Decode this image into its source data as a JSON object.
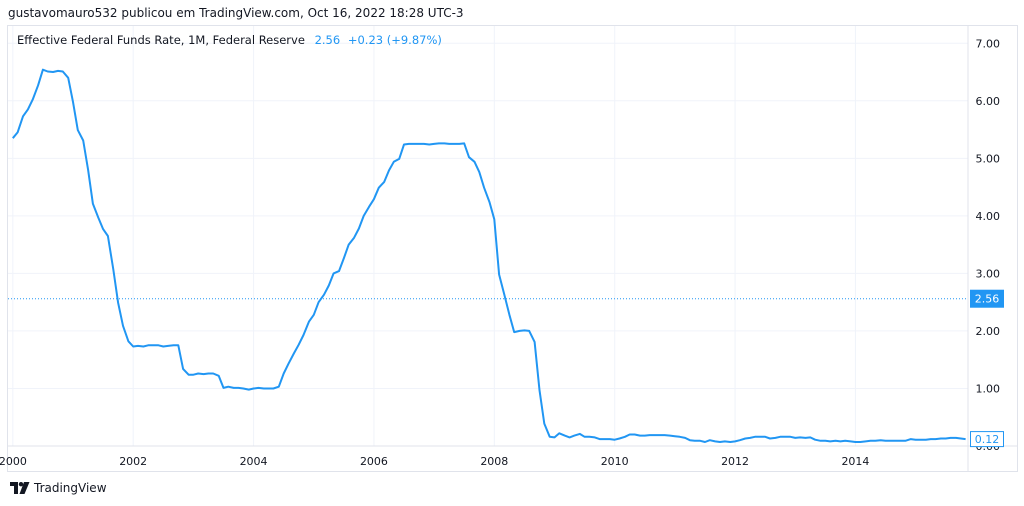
{
  "attribution": "gustavomauro532 publicou em TradingView.com, Oct 16, 2022 18:28 UTC-3",
  "legend": {
    "symbol": "Effective Federal Funds Rate, 1M, Federal Reserve",
    "value": "2.56",
    "change": "+0.23 (+9.87%)"
  },
  "brand": {
    "name": "TradingView",
    "logo_icon": "tradingview-logo-icon"
  },
  "colors": {
    "line": "#2196f3",
    "grid": "#f0f3fa",
    "axis_text": "#131722",
    "badge_fill": "#2196f3"
  },
  "chart_data": {
    "type": "line",
    "title": "",
    "xlabel": "",
    "ylabel": "",
    "xlim": [
      1999.92,
      2015.87
    ],
    "ylim": [
      0.0,
      7.3
    ],
    "grid": true,
    "x_ticks": [
      {
        "x": 2000,
        "label": "2000"
      },
      {
        "x": 2002,
        "label": "2002"
      },
      {
        "x": 2004,
        "label": "2004"
      },
      {
        "x": 2006,
        "label": "2006"
      },
      {
        "x": 2008,
        "label": "2008"
      },
      {
        "x": 2010,
        "label": "2010"
      },
      {
        "x": 2012,
        "label": "2012"
      },
      {
        "x": 2014,
        "label": "2014"
      }
    ],
    "y_ticks": [
      {
        "y": 7.0,
        "label": "7.00"
      },
      {
        "y": 6.0,
        "label": "6.00"
      },
      {
        "y": 5.0,
        "label": "5.00"
      },
      {
        "y": 4.0,
        "label": "4.00"
      },
      {
        "y": 3.0,
        "label": "3.00"
      },
      {
        "y": 2.0,
        "label": "2.00"
      },
      {
        "y": 1.0,
        "label": "1.00"
      },
      {
        "y": 0.0,
        "label": "0.00"
      }
    ],
    "price_line": {
      "y": 2.56,
      "label": "2.56"
    },
    "last_value": {
      "y": 0.12,
      "label": "0.12"
    },
    "series": [
      {
        "name": "Effective Federal Funds Rate",
        "points": [
          [
            2000.0,
            5.35
          ],
          [
            2000.08,
            5.45
          ],
          [
            2000.17,
            5.73
          ],
          [
            2000.25,
            5.85
          ],
          [
            2000.33,
            6.02
          ],
          [
            2000.42,
            6.27
          ],
          [
            2000.5,
            6.54
          ],
          [
            2000.58,
            6.51
          ],
          [
            2000.67,
            6.5
          ],
          [
            2000.75,
            6.52
          ],
          [
            2000.83,
            6.51
          ],
          [
            2000.92,
            6.4
          ],
          [
            2001.0,
            5.98
          ],
          [
            2001.08,
            5.49
          ],
          [
            2001.17,
            5.31
          ],
          [
            2001.25,
            4.8
          ],
          [
            2001.33,
            4.21
          ],
          [
            2001.42,
            3.97
          ],
          [
            2001.5,
            3.77
          ],
          [
            2001.58,
            3.65
          ],
          [
            2001.67,
            3.07
          ],
          [
            2001.75,
            2.49
          ],
          [
            2001.83,
            2.09
          ],
          [
            2001.92,
            1.82
          ],
          [
            2002.0,
            1.73
          ],
          [
            2002.08,
            1.74
          ],
          [
            2002.17,
            1.73
          ],
          [
            2002.25,
            1.75
          ],
          [
            2002.33,
            1.75
          ],
          [
            2002.42,
            1.75
          ],
          [
            2002.5,
            1.73
          ],
          [
            2002.58,
            1.74
          ],
          [
            2002.67,
            1.75
          ],
          [
            2002.75,
            1.75
          ],
          [
            2002.83,
            1.34
          ],
          [
            2002.92,
            1.24
          ],
          [
            2003.0,
            1.24
          ],
          [
            2003.08,
            1.26
          ],
          [
            2003.17,
            1.25
          ],
          [
            2003.25,
            1.26
          ],
          [
            2003.33,
            1.26
          ],
          [
            2003.42,
            1.22
          ],
          [
            2003.5,
            1.01
          ],
          [
            2003.58,
            1.03
          ],
          [
            2003.67,
            1.01
          ],
          [
            2003.75,
            1.01
          ],
          [
            2003.83,
            1.0
          ],
          [
            2003.92,
            0.98
          ],
          [
            2004.0,
            1.0
          ],
          [
            2004.08,
            1.01
          ],
          [
            2004.17,
            1.0
          ],
          [
            2004.25,
            1.0
          ],
          [
            2004.33,
            1.0
          ],
          [
            2004.42,
            1.03
          ],
          [
            2004.5,
            1.26
          ],
          [
            2004.58,
            1.43
          ],
          [
            2004.67,
            1.61
          ],
          [
            2004.75,
            1.76
          ],
          [
            2004.83,
            1.93
          ],
          [
            2004.92,
            2.16
          ],
          [
            2005.0,
            2.28
          ],
          [
            2005.08,
            2.5
          ],
          [
            2005.17,
            2.63
          ],
          [
            2005.25,
            2.79
          ],
          [
            2005.33,
            3.0
          ],
          [
            2005.42,
            3.04
          ],
          [
            2005.5,
            3.26
          ],
          [
            2005.58,
            3.5
          ],
          [
            2005.67,
            3.62
          ],
          [
            2005.75,
            3.78
          ],
          [
            2005.83,
            4.0
          ],
          [
            2005.92,
            4.16
          ],
          [
            2006.0,
            4.29
          ],
          [
            2006.08,
            4.49
          ],
          [
            2006.17,
            4.59
          ],
          [
            2006.25,
            4.79
          ],
          [
            2006.33,
            4.94
          ],
          [
            2006.42,
            4.99
          ],
          [
            2006.5,
            5.24
          ],
          [
            2006.58,
            5.25
          ],
          [
            2006.67,
            5.25
          ],
          [
            2006.75,
            5.25
          ],
          [
            2006.83,
            5.25
          ],
          [
            2006.92,
            5.24
          ],
          [
            2007.0,
            5.25
          ],
          [
            2007.08,
            5.26
          ],
          [
            2007.17,
            5.26
          ],
          [
            2007.25,
            5.25
          ],
          [
            2007.33,
            5.25
          ],
          [
            2007.42,
            5.25
          ],
          [
            2007.5,
            5.26
          ],
          [
            2007.58,
            5.02
          ],
          [
            2007.67,
            4.94
          ],
          [
            2007.75,
            4.76
          ],
          [
            2007.83,
            4.49
          ],
          [
            2007.92,
            4.24
          ],
          [
            2008.0,
            3.94
          ],
          [
            2008.08,
            2.98
          ],
          [
            2008.17,
            2.61
          ],
          [
            2008.25,
            2.28
          ],
          [
            2008.33,
            1.98
          ],
          [
            2008.42,
            2.0
          ],
          [
            2008.5,
            2.01
          ],
          [
            2008.58,
            2.0
          ],
          [
            2008.67,
            1.81
          ],
          [
            2008.75,
            0.97
          ],
          [
            2008.83,
            0.39
          ],
          [
            2008.92,
            0.16
          ],
          [
            2009.0,
            0.15
          ],
          [
            2009.08,
            0.22
          ],
          [
            2009.17,
            0.18
          ],
          [
            2009.25,
            0.15
          ],
          [
            2009.33,
            0.18
          ],
          [
            2009.42,
            0.21
          ],
          [
            2009.5,
            0.16
          ],
          [
            2009.58,
            0.16
          ],
          [
            2009.67,
            0.15
          ],
          [
            2009.75,
            0.12
          ],
          [
            2009.83,
            0.12
          ],
          [
            2009.92,
            0.12
          ],
          [
            2010.0,
            0.11
          ],
          [
            2010.08,
            0.13
          ],
          [
            2010.17,
            0.16
          ],
          [
            2010.25,
            0.2
          ],
          [
            2010.33,
            0.2
          ],
          [
            2010.42,
            0.18
          ],
          [
            2010.5,
            0.18
          ],
          [
            2010.58,
            0.19
          ],
          [
            2010.67,
            0.19
          ],
          [
            2010.75,
            0.19
          ],
          [
            2010.83,
            0.19
          ],
          [
            2010.92,
            0.18
          ],
          [
            2011.0,
            0.17
          ],
          [
            2011.08,
            0.16
          ],
          [
            2011.17,
            0.14
          ],
          [
            2011.25,
            0.1
          ],
          [
            2011.33,
            0.09
          ],
          [
            2011.42,
            0.09
          ],
          [
            2011.5,
            0.07
          ],
          [
            2011.58,
            0.1
          ],
          [
            2011.67,
            0.08
          ],
          [
            2011.75,
            0.07
          ],
          [
            2011.83,
            0.08
          ],
          [
            2011.92,
            0.07
          ],
          [
            2012.0,
            0.08
          ],
          [
            2012.08,
            0.1
          ],
          [
            2012.17,
            0.13
          ],
          [
            2012.25,
            0.14
          ],
          [
            2012.33,
            0.16
          ],
          [
            2012.42,
            0.16
          ],
          [
            2012.5,
            0.16
          ],
          [
            2012.58,
            0.13
          ],
          [
            2012.67,
            0.14
          ],
          [
            2012.75,
            0.16
          ],
          [
            2012.83,
            0.16
          ],
          [
            2012.92,
            0.16
          ],
          [
            2013.0,
            0.14
          ],
          [
            2013.08,
            0.15
          ],
          [
            2013.17,
            0.14
          ],
          [
            2013.25,
            0.15
          ],
          [
            2013.33,
            0.11
          ],
          [
            2013.42,
            0.09
          ],
          [
            2013.5,
            0.09
          ],
          [
            2013.58,
            0.08
          ],
          [
            2013.67,
            0.09
          ],
          [
            2013.75,
            0.08
          ],
          [
            2013.83,
            0.09
          ],
          [
            2013.92,
            0.08
          ],
          [
            2014.0,
            0.07
          ],
          [
            2014.08,
            0.07
          ],
          [
            2014.17,
            0.08
          ],
          [
            2014.25,
            0.09
          ],
          [
            2014.33,
            0.09
          ],
          [
            2014.42,
            0.1
          ],
          [
            2014.5,
            0.09
          ],
          [
            2014.58,
            0.09
          ],
          [
            2014.67,
            0.09
          ],
          [
            2014.75,
            0.09
          ],
          [
            2014.83,
            0.09
          ],
          [
            2014.92,
            0.12
          ],
          [
            2015.0,
            0.11
          ],
          [
            2015.08,
            0.11
          ],
          [
            2015.17,
            0.11
          ],
          [
            2015.25,
            0.12
          ],
          [
            2015.33,
            0.12
          ],
          [
            2015.42,
            0.13
          ],
          [
            2015.5,
            0.13
          ],
          [
            2015.58,
            0.14
          ],
          [
            2015.67,
            0.14
          ],
          [
            2015.75,
            0.13
          ],
          [
            2015.83,
            0.12
          ]
        ]
      }
    ]
  }
}
